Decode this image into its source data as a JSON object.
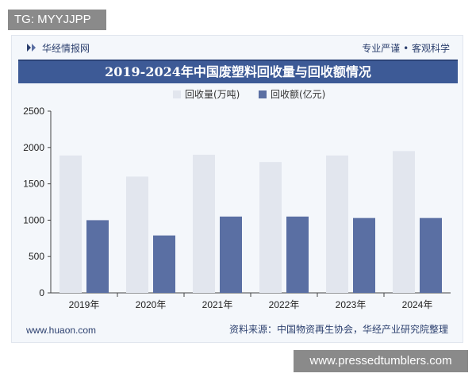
{
  "overlay": {
    "top_tag": "TG: MYYJJPP",
    "bottom_tag": "www.pressedtumblers.com"
  },
  "header": {
    "brand": "华经情报网",
    "slogan": "专业严谨 • 客观科学"
  },
  "footer": {
    "website": "www.huaon.com",
    "source": "资料来源：中国物资再生协会，华经产业研究院整理"
  },
  "colors": {
    "series_volume": "#e2e6ee",
    "series_value": "#5a6fa3",
    "title_bar": "#3d5a96"
  },
  "chart_data": {
    "type": "bar",
    "title": "2019-2024年中国废塑料回收量与回收额情况",
    "categories": [
      "2019年",
      "2020年",
      "2021年",
      "2022年",
      "2023年",
      "2024年"
    ],
    "series": [
      {
        "name": "回收量(万吨)",
        "values": [
          1890,
          1600,
          1900,
          1800,
          1890,
          1950
        ]
      },
      {
        "name": "回收额(亿元)",
        "values": [
          1000,
          790,
          1050,
          1050,
          1030,
          1030
        ]
      }
    ],
    "yticks": [
      0,
      500,
      1000,
      1500,
      2000,
      2500
    ],
    "ylim": [
      0,
      2500
    ],
    "grid": false,
    "legend": "top-center"
  }
}
